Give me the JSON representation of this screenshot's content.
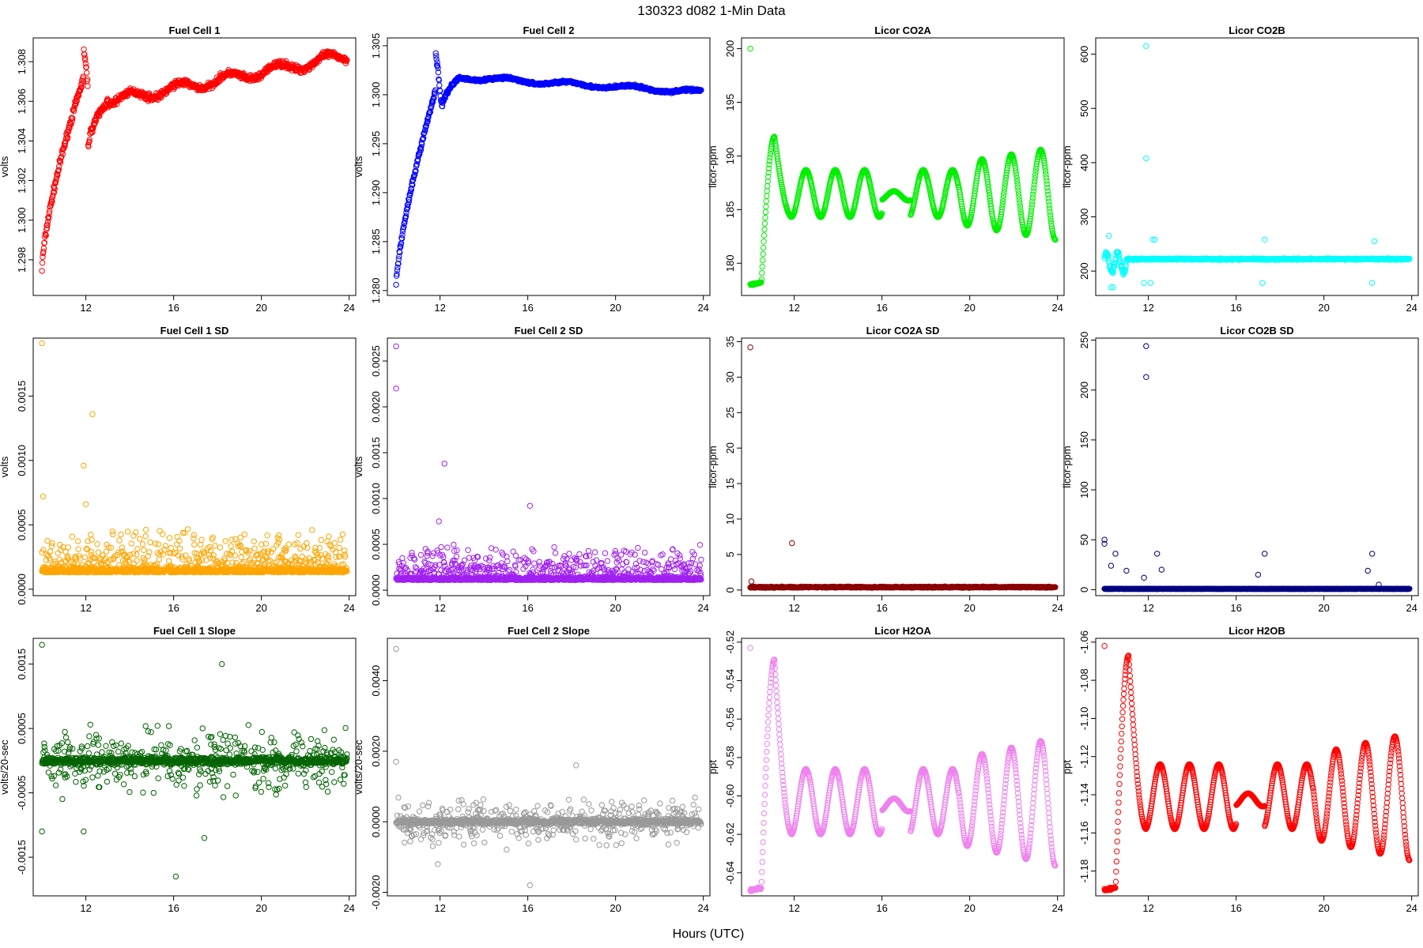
{
  "figure": {
    "title": "130323    d082    1-Min Data",
    "xlabel": "Hours (UTC)"
  },
  "chart_data": [
    {
      "type": "scatter",
      "title": "Fuel Cell 1",
      "ylabel": "volts",
      "color": "#ff0000",
      "xlim": [
        9.6,
        24.3
      ],
      "ylim": [
        1.2962,
        1.3092
      ],
      "x_ticks": [
        12,
        16,
        20,
        24
      ],
      "y_ticks": [
        1.298,
        1.3,
        1.302,
        1.304,
        1.306,
        1.308
      ],
      "series_shape": "fc1",
      "params": {
        "start": 1.2975,
        "end": 1.3083
      }
    },
    {
      "type": "scatter",
      "title": "Fuel Cell 2",
      "ylabel": "volts",
      "color": "#0000ff",
      "xlim": [
        9.6,
        24.3
      ],
      "ylim": [
        1.2795,
        1.3058
      ],
      "x_ticks": [
        12,
        16,
        20,
        24
      ],
      "y_ticks": [
        1.28,
        1.285,
        1.29,
        1.295,
        1.3,
        1.305
      ],
      "series_shape": "fc2",
      "params": {
        "start": 1.2805,
        "end": 1.3002
      }
    },
    {
      "type": "scatter",
      "title": "Licor CO2A",
      "ylabel": "licor-ppm",
      "color": "#00ee00",
      "xlim": [
        9.6,
        24.3
      ],
      "ylim": [
        177.0,
        201.0
      ],
      "x_ticks": [
        12,
        16,
        20,
        24
      ],
      "y_ticks": [
        180,
        185,
        190,
        195,
        200
      ],
      "series_shape": "osc",
      "params": {
        "base": 186.5,
        "amp": 2.2,
        "low": 178.0,
        "peak": 191.8,
        "outlier": 200.0
      }
    },
    {
      "type": "scatter",
      "title": "Licor CO2B",
      "ylabel": "licor-ppm",
      "color": "#00ffff",
      "xlim": [
        9.6,
        24.3
      ],
      "ylim": [
        155,
        630
      ],
      "x_ticks": [
        12,
        16,
        20,
        24
      ],
      "y_ticks": [
        200,
        300,
        400,
        500,
        600
      ],
      "series_shape": "co2b",
      "params": {
        "base": 222,
        "outliers": [
          [
            11.9,
            615
          ],
          [
            11.9,
            408
          ]
        ]
      }
    },
    {
      "type": "scatter",
      "title": "Fuel Cell 1 SD",
      "ylabel": "volts",
      "color": "#ffa500",
      "xlim": [
        9.6,
        24.3
      ],
      "ylim": [
        -5e-05,
        0.00195
      ],
      "x_ticks": [
        12,
        16,
        20,
        24
      ],
      "y_ticks": [
        0.0,
        0.0005,
        0.001,
        0.0015
      ],
      "series_shape": "sd",
      "params": {
        "base": 0.00013,
        "spread": 0.00035,
        "outliers": [
          [
            10.0,
            0.00191
          ],
          [
            12.3,
            0.00136
          ],
          [
            11.9,
            0.00096
          ],
          [
            10.05,
            0.00072
          ],
          [
            12.0,
            0.00066
          ]
        ]
      }
    },
    {
      "type": "scatter",
      "title": "Fuel Cell 2 SD",
      "ylabel": "volts",
      "color": "#a020f0",
      "xlim": [
        9.6,
        24.3
      ],
      "ylim": [
        -6e-05,
        0.00275
      ],
      "x_ticks": [
        12,
        16,
        20,
        24
      ],
      "y_ticks": [
        0.0,
        0.0005,
        0.001,
        0.0015,
        0.002,
        0.0025
      ],
      "series_shape": "sd",
      "params": {
        "base": 0.00011,
        "spread": 0.0004,
        "outliers": [
          [
            10.0,
            0.00266
          ],
          [
            10.0,
            0.0022
          ],
          [
            12.2,
            0.00138
          ],
          [
            11.95,
            0.00075
          ],
          [
            16.1,
            0.00092
          ]
        ]
      }
    },
    {
      "type": "scatter",
      "title": "Licor CO2A SD",
      "ylabel": "licor-ppm",
      "color": "#8b0000",
      "xlim": [
        9.6,
        24.3
      ],
      "ylim": [
        -0.8,
        35.5
      ],
      "x_ticks": [
        12,
        16,
        20,
        24
      ],
      "y_ticks": [
        0,
        5,
        10,
        15,
        20,
        25,
        30,
        35
      ],
      "series_shape": "flat",
      "params": {
        "base": 0.4,
        "outliers": [
          [
            10.0,
            34.2
          ],
          [
            11.9,
            6.6
          ],
          [
            10.05,
            1.2
          ]
        ]
      }
    },
    {
      "type": "scatter",
      "title": "Licor CO2B SD",
      "ylabel": "licor-ppm",
      "color": "#000080",
      "xlim": [
        9.6,
        24.3
      ],
      "ylim": [
        -6,
        252
      ],
      "x_ticks": [
        12,
        16,
        20,
        24
      ],
      "y_ticks": [
        0,
        50,
        100,
        150,
        200,
        250
      ],
      "series_shape": "flat",
      "params": {
        "base": 0.8,
        "outliers": [
          [
            11.9,
            244
          ],
          [
            11.9,
            213
          ],
          [
            10.0,
            50
          ],
          [
            10.0,
            46
          ],
          [
            10.5,
            36
          ],
          [
            12.4,
            36
          ],
          [
            17.3,
            36
          ],
          [
            22.2,
            36
          ],
          [
            10.3,
            24
          ],
          [
            11.0,
            19
          ],
          [
            12.6,
            20
          ],
          [
            17.0,
            15
          ],
          [
            22.0,
            19
          ],
          [
            11.8,
            12
          ],
          [
            22.5,
            5
          ]
        ]
      }
    },
    {
      "type": "scatter",
      "title": "Fuel Cell 1 Slope",
      "ylabel": "volts/20-sec",
      "color": "#006400",
      "xlim": [
        9.6,
        24.3
      ],
      "ylim": [
        -0.0021,
        0.0019
      ],
      "x_ticks": [
        12,
        16,
        20,
        24
      ],
      "y_ticks": [
        -0.0015,
        -0.0005,
        0.0005,
        0.0015
      ],
      "series_shape": "slope",
      "params": {
        "base": 0.0,
        "spread": 0.0007,
        "outliers": [
          [
            10.0,
            0.0018
          ],
          [
            18.2,
            0.0015
          ],
          [
            16.1,
            -0.0018
          ],
          [
            10.0,
            -0.0011
          ],
          [
            11.9,
            -0.0011
          ],
          [
            17.4,
            -0.0012
          ]
        ]
      }
    },
    {
      "type": "scatter",
      "title": "Fuel Cell 2 Slope",
      "ylabel": "volts/20-sec",
      "color": "#999999",
      "xlim": [
        9.6,
        24.3
      ],
      "ylim": [
        -0.0021,
        0.0052
      ],
      "x_ticks": [
        12,
        16,
        20,
        24
      ],
      "y_ticks": [
        -0.002,
        0.0,
        0.002,
        0.004
      ],
      "series_shape": "slope",
      "params": {
        "base": 0.0,
        "spread": 0.0009,
        "outliers": [
          [
            10.0,
            0.0049
          ],
          [
            10.0,
            0.0017
          ],
          [
            18.2,
            0.0016
          ],
          [
            16.1,
            -0.0018
          ],
          [
            11.9,
            -0.0012
          ]
        ]
      }
    },
    {
      "type": "scatter",
      "title": "Licor H2OA",
      "ylabel": "ppt",
      "color": "#ee82ee",
      "xlim": [
        9.6,
        24.3
      ],
      "ylim": [
        -0.652,
        -0.518
      ],
      "x_ticks": [
        12,
        16,
        20,
        24
      ],
      "y_ticks": [
        -0.64,
        -0.62,
        -0.6,
        -0.58,
        -0.56,
        -0.54,
        -0.52
      ],
      "series_shape": "osc",
      "params": {
        "base": -0.603,
        "amp": 0.017,
        "low": -0.649,
        "peak": -0.529,
        "outlier": -0.523
      }
    },
    {
      "type": "scatter",
      "title": "Licor H2OB",
      "ylabel": "ppt",
      "color": "#ff0000",
      "xlim": [
        9.6,
        24.3
      ],
      "ylim": [
        -1.193,
        -1.058
      ],
      "x_ticks": [
        12,
        16,
        20,
        24
      ],
      "y_ticks": [
        -1.18,
        -1.16,
        -1.14,
        -1.12,
        -1.1,
        -1.08,
        -1.06
      ],
      "series_shape": "osc",
      "params": {
        "base": -1.141,
        "amp": 0.017,
        "low": -1.19,
        "peak": -1.067,
        "outlier": -1.062
      }
    }
  ]
}
